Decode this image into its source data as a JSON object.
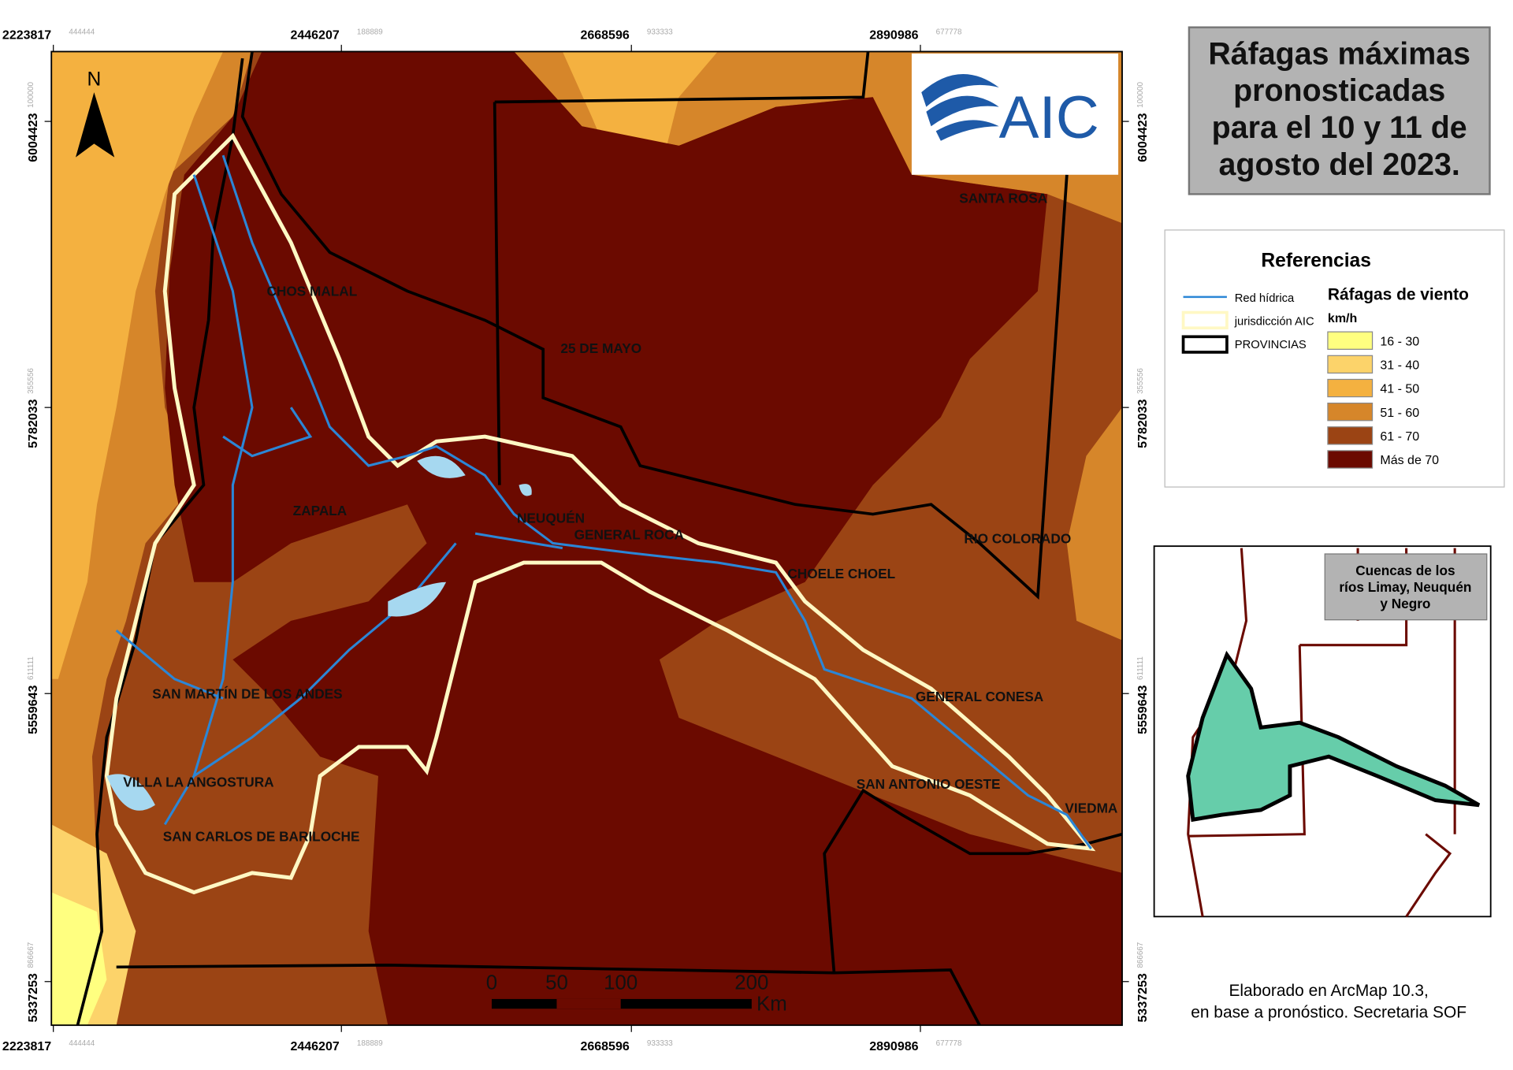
{
  "title_lines": [
    "Ráfagas máximas",
    "pronosticadas",
    "para el 10 y 11 de",
    "agosto del 2023."
  ],
  "grid": {
    "x_labels": [
      {
        "major": "2223817",
        "minor": "444444"
      },
      {
        "major": "2446207",
        "minor": "188889"
      },
      {
        "major": "2668596",
        "minor": "933333"
      },
      {
        "major": "2890986",
        "minor": "677778"
      }
    ],
    "y_labels": [
      {
        "major": "6004423",
        "minor": "100000"
      },
      {
        "major": "5782033",
        "minor": "355556"
      },
      {
        "major": "5559643",
        "minor": "611111"
      },
      {
        "major": "5337253",
        "minor": "866667"
      }
    ]
  },
  "north": "N",
  "logo": "AIC",
  "places": [
    "CHOS MALAL",
    "25 DE MAYO",
    "ZAPALA",
    "NEUQUÉN",
    "GENERAL ROCA",
    "CHOELE CHOEL",
    "RIO COLORADO",
    "SANTA ROSA",
    "SAN MARTÍN DE LOS ANDES",
    "GENERAL CONESA",
    "VILLA LA ANGOSTURA",
    "SAN ANTONIO OESTE",
    "VIEDMA",
    "SAN CARLOS DE BARILOCHE"
  ],
  "legend": {
    "title": "Referencias",
    "layers": [
      "Red hídrica",
      "jurisdicción AIC",
      "PROVINCIAS"
    ],
    "wind_title": "Ráfagas de viento",
    "unit": "km/h",
    "classes": [
      {
        "label": "16 - 30",
        "color": "#ffff80"
      },
      {
        "label": "31 - 40",
        "color": "#fcd36a"
      },
      {
        "label": "41 - 50",
        "color": "#f4b140"
      },
      {
        "label": "51 - 60",
        "color": "#d6862a"
      },
      {
        "label": "61 - 70",
        "color": "#9b4414"
      },
      {
        "label": "Más de 70",
        "color": "#6b0a00"
      }
    ]
  },
  "scale_bar": {
    "labels": [
      "0",
      "50",
      "100",
      "200"
    ],
    "unit": "Km"
  },
  "inset": {
    "title_lines": [
      "Cuencas de los",
      "ríos Limay, Neuquén",
      "y Negro"
    ]
  },
  "credit": [
    "Elaborado en ArcMap 10.3,",
    "en base a pronóstico. Secretaria SOF"
  ]
}
